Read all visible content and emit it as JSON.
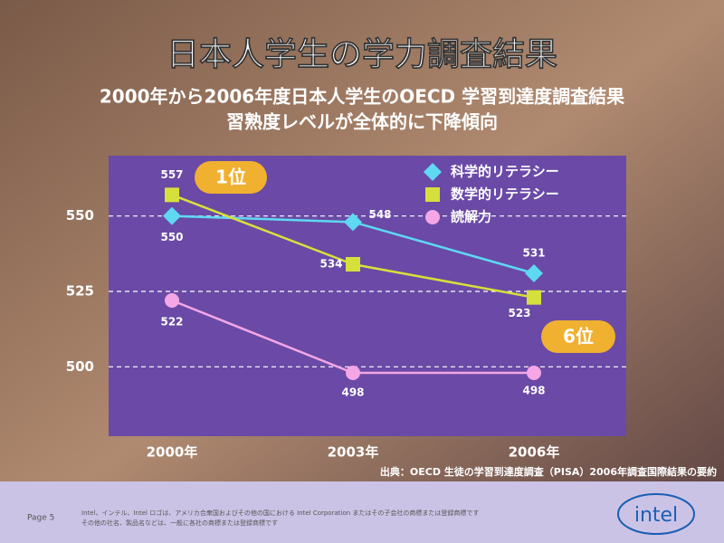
{
  "chart_data": {
    "type": "line",
    "title": "日本人学生の学力調査結果",
    "subtitle": [
      "2000年から2006年度日本人学生のOECD 学習到達度調査結果",
      "習熟度レベルが全体的に下降傾向"
    ],
    "categories": [
      "2000年",
      "2003年",
      "2006年"
    ],
    "series": [
      {
        "name": "科学的リテラシー",
        "color": "#5fd8f2",
        "marker": "diamond",
        "values": [
          550,
          548,
          531
        ]
      },
      {
        "name": "数学的リテラシー",
        "color": "#d6e03c",
        "marker": "square",
        "values": [
          557,
          534,
          523
        ]
      },
      {
        "name": "読解力",
        "color": "#f4a6e6",
        "marker": "circle",
        "values": [
          522,
          498,
          498
        ]
      }
    ],
    "ylim": [
      477,
      570
    ],
    "yticks": [
      500,
      525,
      550
    ],
    "grid": true,
    "legend": "top-right",
    "annotations": [
      "1位",
      "6位"
    ],
    "source": "出典：OECD 生徒の学習到達度調査（PISA）2006年調査国際結果の要約",
    "footer": {
      "page": "Page 5",
      "notes": [
        "Intel、インテル、Intel ロゴは、アメリカ合衆国およびその他の国における Intel Corporation またはその子会社の商標または登録商標です",
        "その他の社名、製品名などは、一般に各社の商標または登録商標です"
      ],
      "logo": "intel"
    }
  }
}
